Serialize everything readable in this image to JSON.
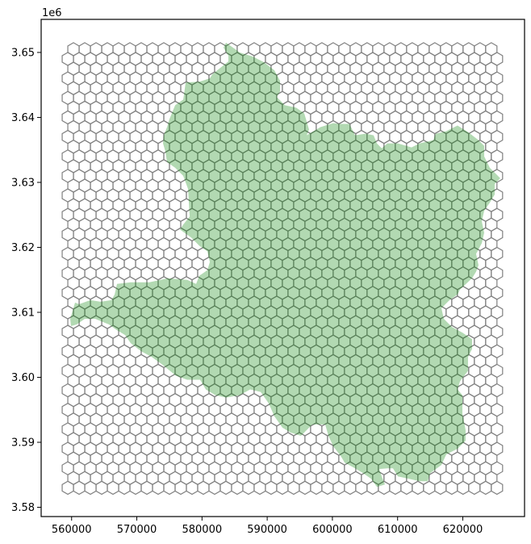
{
  "chart_data": {
    "type": "map",
    "title": "",
    "xlabel": "",
    "ylabel": "",
    "xlim": [
      555330,
      629470
    ],
    "ylim": [
      3578570,
      3655090
    ],
    "y_offset_label": "1e6",
    "x_ticks": [
      560000,
      570000,
      580000,
      590000,
      600000,
      610000,
      620000
    ],
    "x_tick_labels": [
      "560000",
      "570000",
      "580000",
      "590000",
      "600000",
      "610000",
      "620000"
    ],
    "y_ticks": [
      3580000,
      3590000,
      3600000,
      3610000,
      3620000,
      3630000,
      3640000,
      3650000
    ],
    "y_tick_labels": [
      "3.58",
      "3.59",
      "3.60",
      "3.61",
      "3.62",
      "3.63",
      "3.64",
      "3.65"
    ],
    "grid": false,
    "hex_grid": {
      "orientation": "pointy-top",
      "cell_radius": 1000,
      "top_row_center_y": 3650500,
      "row_step": 1500,
      "rows": 46,
      "first_row_offset": true,
      "full_row_first_center_x": 559420,
      "full_row_count": 39,
      "offset_row_first_center_x": 560286,
      "offset_row_count": 38,
      "edge_color": "#808080",
      "fill": "none"
    },
    "region": {
      "fill_color": "#008000",
      "fill_alpha": 0.3,
      "polygon": [
        [
          583680,
          3651500
        ],
        [
          584910,
          3650630
        ],
        [
          585780,
          3650000
        ],
        [
          587760,
          3649380
        ],
        [
          589490,
          3648500
        ],
        [
          591100,
          3647250
        ],
        [
          591970,
          3645630
        ],
        [
          591970,
          3644000
        ],
        [
          591470,
          3643130
        ],
        [
          592710,
          3641880
        ],
        [
          594440,
          3641500
        ],
        [
          595680,
          3640630
        ],
        [
          596050,
          3639380
        ],
        [
          596420,
          3638130
        ],
        [
          596050,
          3637250
        ],
        [
          598160,
          3638500
        ],
        [
          600140,
          3639130
        ],
        [
          601000,
          3639000
        ],
        [
          602610,
          3639000
        ],
        [
          603480,
          3637250
        ],
        [
          605090,
          3637500
        ],
        [
          606320,
          3637250
        ],
        [
          606820,
          3636000
        ],
        [
          607560,
          3635250
        ],
        [
          608430,
          3636000
        ],
        [
          610040,
          3636000
        ],
        [
          612140,
          3635380
        ],
        [
          613380,
          3636000
        ],
        [
          615480,
          3636500
        ],
        [
          615850,
          3637500
        ],
        [
          617460,
          3637880
        ],
        [
          618700,
          3638500
        ],
        [
          619190,
          3638750
        ],
        [
          620800,
          3637750
        ],
        [
          622410,
          3636500
        ],
        [
          623280,
          3635630
        ],
        [
          623280,
          3634000
        ],
        [
          624140,
          3632250
        ],
        [
          624890,
          3631500
        ],
        [
          625750,
          3630630
        ],
        [
          624890,
          3629750
        ],
        [
          624890,
          3628130
        ],
        [
          624140,
          3626880
        ],
        [
          623280,
          3625630
        ],
        [
          622910,
          3624000
        ],
        [
          623280,
          3622250
        ],
        [
          622910,
          3620630
        ],
        [
          622040,
          3619000
        ],
        [
          622410,
          3617250
        ],
        [
          622040,
          3616250
        ],
        [
          621420,
          3615250
        ],
        [
          619570,
          3613500
        ],
        [
          619190,
          3612750
        ],
        [
          617960,
          3611880
        ],
        [
          616720,
          3610630
        ],
        [
          617090,
          3609000
        ],
        [
          618330,
          3607750
        ],
        [
          619940,
          3606880
        ],
        [
          621420,
          3605880
        ],
        [
          621420,
          3604380
        ],
        [
          620800,
          3603130
        ],
        [
          620800,
          3601000
        ],
        [
          619570,
          3599380
        ],
        [
          619190,
          3598130
        ],
        [
          619940,
          3597250
        ],
        [
          619940,
          3594380
        ],
        [
          620430,
          3591880
        ],
        [
          620430,
          3590250
        ],
        [
          619190,
          3589000
        ],
        [
          617460,
          3588130
        ],
        [
          616720,
          3586500
        ],
        [
          614990,
          3585250
        ],
        [
          614620,
          3584000
        ],
        [
          613380,
          3584000
        ],
        [
          611770,
          3584380
        ],
        [
          610040,
          3584750
        ],
        [
          609290,
          3586000
        ],
        [
          608430,
          3586000
        ],
        [
          607190,
          3585880
        ],
        [
          607560,
          3584750
        ],
        [
          608060,
          3583500
        ],
        [
          606820,
          3583130
        ],
        [
          605950,
          3584380
        ],
        [
          604710,
          3585250
        ],
        [
          603480,
          3586000
        ],
        [
          601870,
          3586880
        ],
        [
          601370,
          3587750
        ],
        [
          600140,
          3589380
        ],
        [
          599390,
          3591000
        ],
        [
          598900,
          3592750
        ],
        [
          596920,
          3592750
        ],
        [
          595180,
          3591000
        ],
        [
          593580,
          3591500
        ],
        [
          592340,
          3592250
        ],
        [
          591100,
          3594000
        ],
        [
          590230,
          3596000
        ],
        [
          589000,
          3597750
        ],
        [
          587390,
          3598130
        ],
        [
          585780,
          3597250
        ],
        [
          583680,
          3596880
        ],
        [
          582070,
          3597250
        ],
        [
          580580,
          3598130
        ],
        [
          579710,
          3599630
        ],
        [
          577730,
          3599630
        ],
        [
          576000,
          3600250
        ],
        [
          574020,
          3601880
        ],
        [
          572290,
          3603130
        ],
        [
          570680,
          3604000
        ],
        [
          569070,
          3605250
        ],
        [
          568210,
          3606500
        ],
        [
          566970,
          3607250
        ],
        [
          565730,
          3608130
        ],
        [
          563630,
          3609000
        ],
        [
          562020,
          3609000
        ],
        [
          560780,
          3608130
        ],
        [
          559910,
          3607880
        ],
        [
          559790,
          3609000
        ],
        [
          560160,
          3610250
        ],
        [
          560530,
          3611500
        ],
        [
          561150,
          3611250
        ],
        [
          562880,
          3611880
        ],
        [
          564490,
          3611630
        ],
        [
          566100,
          3611880
        ],
        [
          566600,
          3612750
        ],
        [
          566970,
          3614380
        ],
        [
          569070,
          3614630
        ],
        [
          571920,
          3614630
        ],
        [
          574760,
          3615250
        ],
        [
          577730,
          3615000
        ],
        [
          579100,
          3614380
        ],
        [
          579590,
          3615630
        ],
        [
          580830,
          3616500
        ],
        [
          581200,
          3617750
        ],
        [
          580830,
          3619380
        ],
        [
          579590,
          3620250
        ],
        [
          578350,
          3621500
        ],
        [
          576620,
          3622750
        ],
        [
          577120,
          3623500
        ],
        [
          578110,
          3624750
        ],
        [
          577860,
          3629000
        ],
        [
          577120,
          3631000
        ],
        [
          575880,
          3632250
        ],
        [
          574640,
          3633130
        ],
        [
          574390,
          3634750
        ],
        [
          574020,
          3636000
        ],
        [
          574150,
          3637250
        ],
        [
          574640,
          3638500
        ],
        [
          575010,
          3639750
        ],
        [
          575380,
          3640630
        ],
        [
          575880,
          3641880
        ],
        [
          577120,
          3642750
        ],
        [
          577240,
          3643500
        ],
        [
          577490,
          3645380
        ],
        [
          579590,
          3645500
        ],
        [
          581200,
          3646000
        ],
        [
          581570,
          3646630
        ],
        [
          584050,
          3648630
        ],
        [
          584050,
          3649500
        ],
        [
          583300,
          3650750
        ]
      ]
    }
  }
}
